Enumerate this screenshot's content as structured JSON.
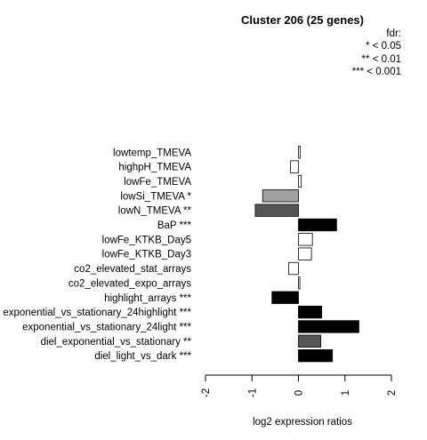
{
  "chart_data": {
    "type": "bar",
    "orientation": "horizontal",
    "title": "Cluster 206 (25 genes)",
    "xlabel": "log2 expression ratios",
    "xlim": [
      -2,
      2
    ],
    "xticks": [
      "-2",
      "-1",
      "0",
      "1",
      "2"
    ],
    "legend": {
      "title": "fdr:",
      "entries": [
        "* < 0.05",
        "** < 0.01",
        "*** < 0.001"
      ],
      "placement": "top-right"
    },
    "categories": [
      "lowtemp_TMEVA",
      "highpH_TMEVA",
      "lowFe_TMEVA",
      "lowSi_TMEVA *",
      "lowN_TMEVA **",
      "BaP ***",
      "lowFe_KTKB_Day5",
      "lowFe_KTKB_Day3",
      "co2_elevated_stat_arrays",
      "co2_elevated_expo_arrays",
      "highlight_arrays ***",
      "exponential_vs_stationary_24highlight ***",
      "exponential_vs_stationary_24light ***",
      "diel_exponential_vs_stationary **",
      "diel_light_vs_dark ***"
    ],
    "values": [
      0.04,
      -0.17,
      0.06,
      -0.77,
      -0.93,
      0.82,
      0.3,
      0.28,
      -0.21,
      0.03,
      -0.57,
      0.5,
      1.3,
      0.48,
      0.73
    ],
    "bar_colors": [
      "#ffffff",
      "#ffffff",
      "#ffffff",
      "#a0a0a0",
      "#555555",
      "#000000",
      "#ffffff",
      "#ffffff",
      "#ffffff",
      "#ffffff",
      "#000000",
      "#000000",
      "#000000",
      "#555555",
      "#000000"
    ]
  }
}
